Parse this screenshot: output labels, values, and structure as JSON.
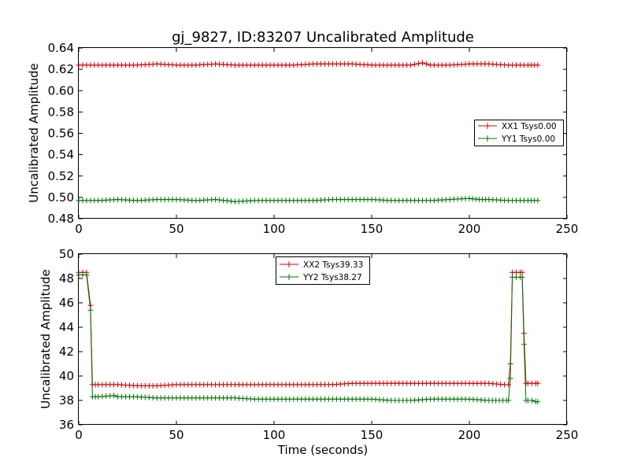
{
  "colors": {
    "red": "#d40000",
    "green": "#007500"
  },
  "chart_data": [
    {
      "type": "line",
      "title": "gj_9827, ID:83207 Uncalibrated Amplitude",
      "xlabel": "",
      "ylabel": "Uncalibrated Amplitude",
      "xlim": [
        0,
        250
      ],
      "ylim": [
        0.48,
        0.64
      ],
      "xticks": [
        "0",
        "50",
        "100",
        "150",
        "200",
        "250"
      ],
      "yticks": [
        "0.48",
        "0.50",
        "0.52",
        "0.54",
        "0.56",
        "0.58",
        "0.60",
        "0.62",
        "0.64"
      ],
      "legend_position": "center-right",
      "series": [
        {
          "name": "XX1 Tsys0.00",
          "color": "#d40000",
          "x": [
            0,
            10,
            20,
            30,
            40,
            50,
            60,
            70,
            80,
            90,
            100,
            110,
            120,
            130,
            140,
            150,
            160,
            170,
            176,
            180,
            190,
            200,
            210,
            220,
            230,
            235
          ],
          "y": [
            0.624,
            0.624,
            0.624,
            0.624,
            0.625,
            0.624,
            0.624,
            0.625,
            0.624,
            0.624,
            0.624,
            0.624,
            0.625,
            0.625,
            0.625,
            0.624,
            0.624,
            0.624,
            0.626,
            0.624,
            0.624,
            0.625,
            0.625,
            0.624,
            0.624,
            0.624
          ]
        },
        {
          "name": "YY1 Tsys0.00",
          "color": "#007500",
          "x": [
            0,
            10,
            20,
            30,
            40,
            50,
            60,
            70,
            80,
            90,
            100,
            110,
            120,
            130,
            140,
            150,
            160,
            170,
            180,
            190,
            200,
            205,
            210,
            220,
            230,
            235
          ],
          "y": [
            0.497,
            0.497,
            0.498,
            0.497,
            0.498,
            0.498,
            0.497,
            0.498,
            0.496,
            0.497,
            0.497,
            0.497,
            0.497,
            0.498,
            0.498,
            0.498,
            0.497,
            0.497,
            0.497,
            0.498,
            0.499,
            0.498,
            0.498,
            0.497,
            0.497,
            0.497
          ]
        }
      ]
    },
    {
      "type": "line",
      "title": "",
      "xlabel": "Time (seconds)",
      "ylabel": "Uncalibrated Amplitude",
      "xlim": [
        0,
        250
      ],
      "ylim": [
        36,
        50
      ],
      "xticks": [
        "0",
        "50",
        "100",
        "150",
        "200",
        "250"
      ],
      "yticks": [
        "36",
        "38",
        "40",
        "42",
        "44",
        "46",
        "48",
        "50"
      ],
      "legend_position": "upper-center",
      "series": [
        {
          "name": "XX2 Tsys39.33",
          "color": "#d40000",
          "x": [
            0,
            2,
            4,
            6,
            7,
            10,
            20,
            30,
            40,
            50,
            60,
            70,
            80,
            90,
            100,
            110,
            120,
            130,
            140,
            150,
            160,
            170,
            180,
            190,
            200,
            210,
            218,
            220,
            221,
            222,
            224,
            226,
            227,
            228,
            229,
            230,
            232,
            234,
            235
          ],
          "y": [
            48.5,
            48.5,
            48.5,
            45.8,
            39.3,
            39.3,
            39.3,
            39.2,
            39.2,
            39.3,
            39.3,
            39.3,
            39.3,
            39.3,
            39.3,
            39.3,
            39.3,
            39.3,
            39.4,
            39.4,
            39.4,
            39.4,
            39.4,
            39.4,
            39.4,
            39.4,
            39.3,
            39.3,
            41.0,
            48.5,
            48.5,
            48.5,
            48.5,
            43.5,
            39.4,
            39.4,
            39.4,
            39.4,
            39.4
          ]
        },
        {
          "name": "YY2 Tsys38.27",
          "color": "#007500",
          "x": [
            0,
            2,
            4,
            6,
            7,
            10,
            18,
            20,
            30,
            40,
            50,
            60,
            70,
            80,
            90,
            100,
            110,
            120,
            130,
            140,
            150,
            160,
            170,
            180,
            190,
            200,
            210,
            219,
            220,
            221,
            222,
            224,
            226,
            227,
            228,
            229,
            230,
            232,
            234,
            235
          ],
          "y": [
            48.3,
            48.3,
            48.3,
            45.4,
            38.3,
            38.3,
            38.4,
            38.3,
            38.3,
            38.2,
            38.2,
            38.2,
            38.2,
            38.2,
            38.1,
            38.1,
            38.1,
            38.1,
            38.1,
            38.1,
            38.1,
            38.0,
            38.0,
            38.1,
            38.1,
            38.1,
            38.0,
            38.0,
            38.0,
            39.8,
            48.1,
            48.1,
            48.1,
            48.1,
            42.6,
            38.0,
            38.0,
            38.0,
            37.9,
            37.9
          ]
        }
      ]
    }
  ]
}
